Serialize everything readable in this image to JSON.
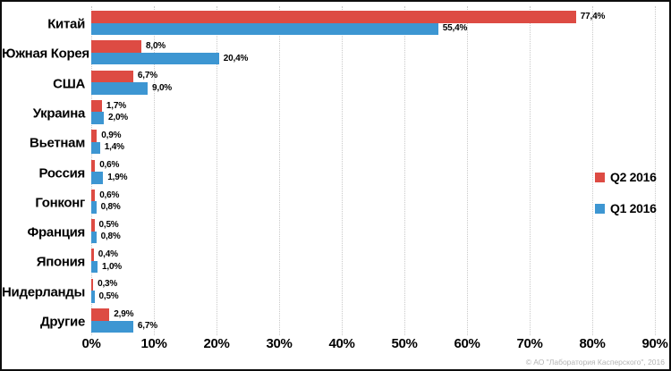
{
  "chart_data": {
    "type": "bar",
    "orientation": "horizontal",
    "title": "",
    "categories": [
      "Китай",
      "Южная Корея",
      "США",
      "Украина",
      "Вьетнам",
      "Россия",
      "Гонконг",
      "Франция",
      "Япония",
      "Нидерланды",
      "Другие"
    ],
    "series": [
      {
        "name": "Q2 2016",
        "color": "#DD4B43",
        "values": [
          77.4,
          8.0,
          6.7,
          1.7,
          0.9,
          0.6,
          0.6,
          0.5,
          0.4,
          0.3,
          2.9
        ],
        "labels": [
          "77,4%",
          "8,0%",
          "6,7%",
          "1,7%",
          "0,9%",
          "0,6%",
          "0,6%",
          "0,5%",
          "0,4%",
          "0,3%",
          "2,9%"
        ]
      },
      {
        "name": "Q1 2016",
        "color": "#3D96D2",
        "values": [
          55.4,
          20.4,
          9.0,
          2.0,
          1.4,
          1.9,
          0.8,
          0.8,
          1.0,
          0.5,
          6.7
        ],
        "labels": [
          "55,4%",
          "20,4%",
          "9,0%",
          "2,0%",
          "1,4%",
          "1,9%",
          "0,8%",
          "0,8%",
          "1,0%",
          "0,5%",
          "6,7%"
        ]
      }
    ],
    "x_axis": {
      "min": 0,
      "max": 90,
      "step": 10,
      "tick_labels": [
        "0%",
        "10%",
        "20%",
        "30%",
        "40%",
        "50%",
        "60%",
        "70%",
        "80%",
        "90%"
      ]
    },
    "grid": "vertical-dotted",
    "legend": {
      "position": "middle-right",
      "items": [
        {
          "label": "Q2 2016",
          "color": "#DD4B43"
        },
        {
          "label": "Q1 2016",
          "color": "#3D96D2"
        }
      ]
    }
  },
  "footer": {
    "copyright": "© АО \"Лаборатория Касперского\", 2016"
  }
}
